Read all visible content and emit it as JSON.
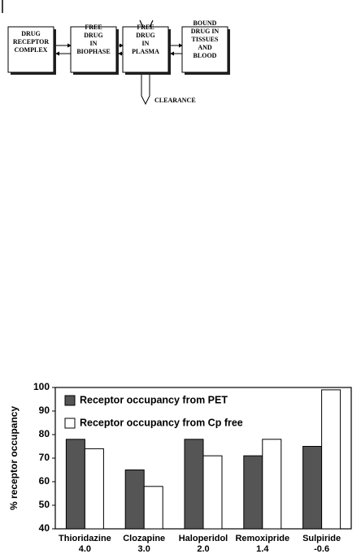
{
  "diagram": {
    "nodes": [
      {
        "lines": [
          "DRUG",
          "RECEPTOR",
          "COMPLEX"
        ]
      },
      {
        "lines": [
          "FREE",
          "DRUG",
          "IN",
          "BIOPHASE"
        ]
      },
      {
        "lines": [
          "FREE",
          "DRUG",
          "IN",
          "PLASMA"
        ]
      },
      {
        "lines": [
          "BOUND",
          "DRUG IN",
          "TISSUES",
          "AND",
          "BLOOD"
        ]
      }
    ],
    "outflow": "CLEARANCE"
  },
  "chart_data": {
    "type": "bar",
    "ylabel": "% receptor occupancy",
    "categories": [
      "Thioridazine",
      "Clozapine",
      "Haloperidol",
      "Remoxipride",
      "Sulpiride"
    ],
    "category_sublabels": [
      "4.0",
      "3.0",
      "2.0",
      "1.4",
      "-0.6"
    ],
    "series": [
      {
        "name": "Receptor occupancy from PET",
        "color": "#555555",
        "values": [
          78,
          65,
          78,
          71,
          75
        ]
      },
      {
        "name": "Receptor occupancy from Cp free",
        "color": "#ffffff",
        "values": [
          74,
          58,
          71,
          78,
          99
        ]
      }
    ],
    "ylim": [
      40,
      100
    ],
    "yticks": [
      40,
      50,
      60,
      70,
      80,
      90,
      100
    ],
    "grid": false,
    "legend": "top-left"
  }
}
